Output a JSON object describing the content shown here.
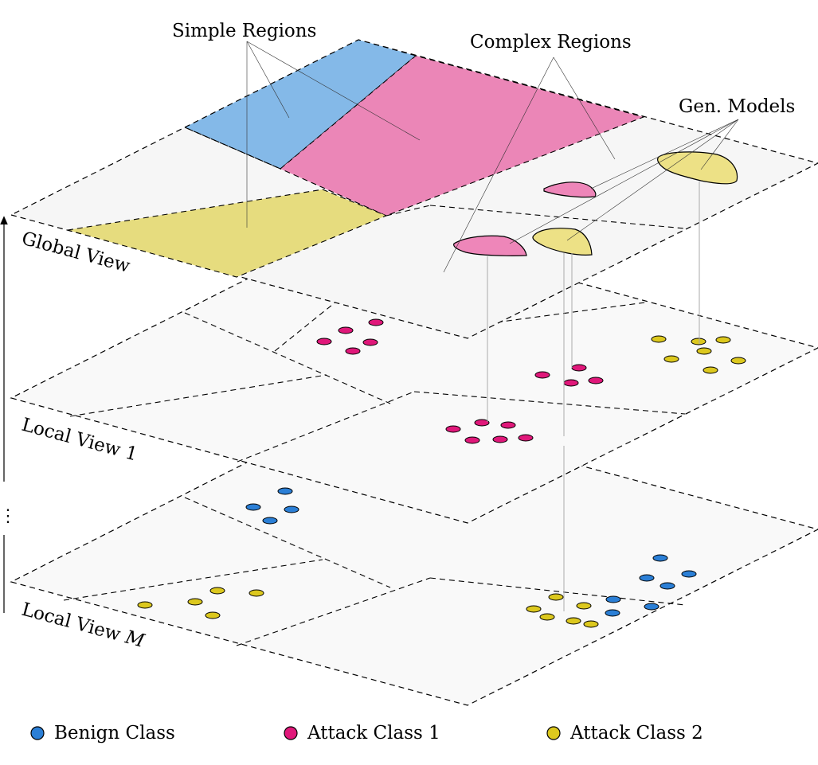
{
  "labels": {
    "simple_regions": "Simple Regions",
    "complex_regions": "Complex Regions",
    "gen_models": "Gen. Models",
    "global_view": "Global View",
    "local_view_1": "Local View 1",
    "local_view_m_prefix": "Local View ",
    "local_view_m_var": "M",
    "ellipsis": "⋮"
  },
  "legend": [
    {
      "label": "Benign Class",
      "color": "#2b7fd6"
    },
    {
      "label": "Attack Class 1",
      "color": "#e0187a"
    },
    {
      "label": "Attack Class 2",
      "color": "#dcc81e"
    }
  ],
  "colors": {
    "simple_blue": "#84b9e8",
    "complex_pink": "#eb86b7",
    "simple_yellow": "#e6dc7e",
    "gen_pink": "#ee86b9",
    "gen_yellow": "#ede186",
    "benign": "#2b7fd6",
    "attack1": "#e0187a",
    "attack2": "#dcc81e"
  }
}
